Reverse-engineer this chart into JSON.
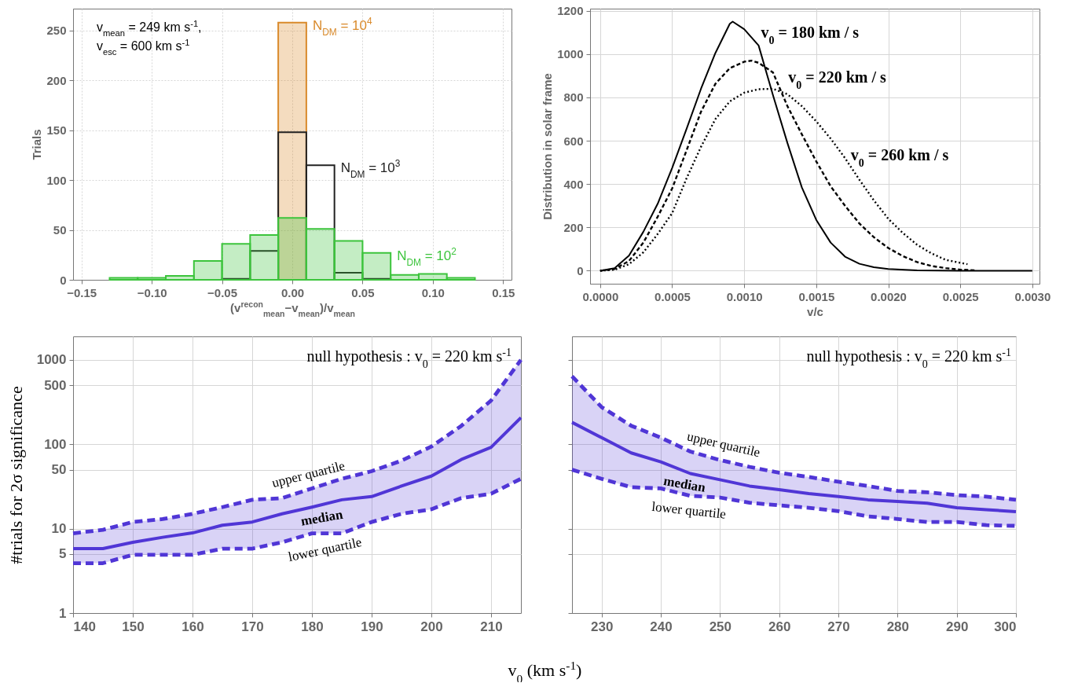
{
  "chart_data": [
    {
      "type": "histogram",
      "xlabel": "(v$^{recon}$$_{mean}$−v$_{mean}$)/v$_{mean}$",
      "ylabel": "Trials",
      "annotations": [
        "v$_{mean}$ = 249 km s$^{-1}$,",
        "v$_{esc}$ = 600 km s$^{-1}$"
      ],
      "bins": [
        -0.13,
        -0.11,
        -0.09,
        -0.07,
        -0.05,
        -0.03,
        -0.01,
        0.01,
        0.03,
        0.05,
        0.07,
        0.09,
        0.11,
        0.13
      ],
      "xlim": [
        -0.156,
        0.156
      ],
      "xticks": [
        {
          "value": -0.15,
          "label": "−0.15"
        },
        {
          "value": -0.1,
          "label": "−0.10"
        },
        {
          "value": -0.05,
          "label": "−0.05"
        },
        {
          "value": 0,
          "label": "0.00"
        },
        0.05,
        {
          "value": 0.1,
          "label": "0.10"
        },
        0.15
      ],
      "ylim": [
        0,
        272
      ],
      "yticks": [
        0,
        50,
        100,
        150,
        200,
        250
      ],
      "grid": true,
      "series": [
        {
          "name": "N$_{DM}$ = 10$^{4}$",
          "color": "#d98a2b",
          "values": [
            0,
            0,
            0,
            0,
            0,
            0,
            258,
            0,
            0,
            0,
            0,
            0,
            0
          ]
        },
        {
          "name": "N$_{DM}$ = 10$^{3}$",
          "color": "#222222",
          "values": [
            0,
            0,
            0,
            0,
            1,
            29,
            148,
            115,
            7,
            1,
            0,
            0,
            0
          ]
        },
        {
          "name": "N$_{DM}$ = 10$^{2}$",
          "color": "#3cc43c",
          "values": [
            2,
            2,
            4,
            19,
            36,
            45,
            62,
            51,
            39,
            27,
            5,
            6,
            2
          ]
        }
      ]
    },
    {
      "type": "line",
      "xlabel": "v/c",
      "ylabel": "Distribution in solar frame",
      "xlim": [
        -7e-05,
        0.00305
      ],
      "xticks": [
        {
          "value": 0,
          "label": "0.0000"
        },
        {
          "value": 0.0005,
          "label": "0.0005"
        },
        {
          "value": 0.001,
          "label": "0.0010"
        },
        {
          "value": 0.0015,
          "label": "0.0015"
        },
        {
          "value": 0.002,
          "label": "0.0020"
        },
        {
          "value": 0.0025,
          "label": "0.0025"
        },
        {
          "value": 0.003,
          "label": "0.0030"
        }
      ],
      "ylim": [
        -60,
        1210
      ],
      "yticks": [
        0,
        200,
        400,
        600,
        800,
        1000,
        1200
      ],
      "grid": true,
      "series": [
        {
          "name": "v$_{0}$ = 180 km / s",
          "color": "#000000",
          "line_style": "solid",
          "x": [
            0,
            0.0001,
            0.0002,
            0.0003,
            0.0004,
            0.0005,
            0.0006,
            0.0007,
            0.0008,
            0.0009,
            0.00092,
            0.001,
            0.0011,
            0.0012,
            0.0013,
            0.0014,
            0.0015,
            0.0016,
            0.0017,
            0.0018,
            0.0019,
            0.002,
            0.0022,
            0.0025,
            0.003
          ],
          "values": [
            0,
            12,
            70,
            180,
            310,
            475,
            655,
            840,
            1005,
            1140,
            1150,
            1115,
            1040,
            810,
            590,
            385,
            235,
            130,
            65,
            32,
            16,
            8,
            2,
            0,
            0
          ]
        },
        {
          "name": "v$_{0}$ = 220 km / s",
          "color": "#000000",
          "line_style": "dashed",
          "x": [
            0,
            0.0001,
            0.0002,
            0.0003,
            0.0004,
            0.0005,
            0.0006,
            0.0007,
            0.0008,
            0.0009,
            0.001,
            0.00105,
            0.0011,
            0.0012,
            0.0013,
            0.0014,
            0.0015,
            0.0016,
            0.0017,
            0.0018,
            0.0019,
            0.002,
            0.0021,
            0.0022,
            0.0023,
            0.0024,
            0.0025,
            0.0026
          ],
          "values": [
            0,
            8,
            45,
            130,
            250,
            380,
            556,
            734,
            863,
            935,
            965,
            970,
            960,
            915,
            760,
            630,
            505,
            390,
            300,
            218,
            155,
            105,
            68,
            40,
            22,
            12,
            5,
            2
          ]
        },
        {
          "name": "v$_{0}$ = 260 km / s",
          "color": "#000000",
          "line_style": "dotted",
          "x": [
            0,
            0.0001,
            0.0002,
            0.0003,
            0.0004,
            0.0005,
            0.0006,
            0.0007,
            0.0008,
            0.0009,
            0.001,
            0.0011,
            0.0012,
            0.0013,
            0.0014,
            0.0015,
            0.0016,
            0.0017,
            0.0018,
            0.0019,
            0.002,
            0.0021,
            0.0022,
            0.0023,
            0.0024,
            0.00255
          ],
          "values": [
            0,
            5,
            30,
            85,
            170,
            266,
            427,
            572,
            700,
            782,
            822,
            838,
            840,
            815,
            760,
            690,
            610,
            520,
            420,
            325,
            240,
            175,
            120,
            80,
            50,
            30
          ]
        }
      ]
    },
    {
      "type": "line",
      "xlabel": "v$_{0}$ (km s$^{-1}$)",
      "ylabel": "#trials for 2σ significance",
      "annotations": [
        "null hypothesis :  v$_{0}$ = 220 km s$^{-1}$"
      ],
      "log": true,
      "grid": true,
      "xlim": [
        140,
        215
      ],
      "xticks": [
        140,
        150,
        160,
        170,
        180,
        190,
        200,
        210
      ],
      "ylim": [
        1,
        1900
      ],
      "yticks": [
        1,
        5,
        10,
        50,
        100,
        500,
        1000
      ],
      "x": [
        140,
        145,
        150,
        155,
        160,
        165,
        170,
        175,
        180,
        185,
        190,
        195,
        200,
        205,
        210,
        215
      ],
      "series": [
        {
          "name": "upper quartile",
          "color": "#5036d6",
          "line_style": "dashed",
          "values": [
            8.8,
            9.7,
            12,
            13,
            15,
            18,
            22,
            23,
            30,
            39,
            48,
            64,
            94,
            165,
            330,
            1000
          ]
        },
        {
          "name": "median",
          "color": "#5036d6",
          "line_style": "solid",
          "values": [
            5.8,
            5.8,
            6.9,
            7.9,
            8.9,
            11,
            12,
            15,
            18,
            22,
            24,
            32,
            42,
            66,
            92,
            207
          ],
          "lower": [
            3.9,
            3.9,
            4.9,
            4.9,
            4.9,
            5.8,
            5.8,
            6.9,
            8.8,
            8.8,
            12,
            15,
            17,
            23,
            26,
            39
          ],
          "upper": [
            8.8,
            9.7,
            12,
            13,
            15,
            18,
            22,
            23,
            30,
            39,
            48,
            64,
            94,
            165,
            330,
            1000
          ]
        },
        {
          "name": "lower quartile",
          "color": "#5036d6",
          "line_style": "dashed",
          "values": [
            3.9,
            3.9,
            4.9,
            4.9,
            4.9,
            5.8,
            5.8,
            6.9,
            8.8,
            8.8,
            12,
            15,
            17,
            23,
            26,
            39
          ]
        }
      ]
    },
    {
      "type": "line",
      "annotations": [
        "null hypothesis :  v$_{0}$ = 220 km s$^{-1}$"
      ],
      "log": true,
      "grid": true,
      "tick_labels": "x",
      "xlim": [
        225,
        300
      ],
      "xticks": [
        230,
        240,
        250,
        260,
        270,
        280,
        290,
        300
      ],
      "ylim": [
        1,
        1900
      ],
      "yticks": [
        1,
        5,
        10,
        50,
        100,
        500,
        1000
      ],
      "x": [
        225,
        230,
        235,
        240,
        245,
        250,
        255,
        260,
        265,
        270,
        275,
        280,
        285,
        290,
        295,
        300
      ],
      "series": [
        {
          "name": "upper quartile",
          "color": "#5036d6",
          "line_style": "dashed",
          "values": [
            640,
            276,
            166,
            120,
            82,
            65,
            54,
            46,
            41,
            36,
            32,
            28,
            27,
            25,
            24,
            22
          ]
        },
        {
          "name": "median",
          "color": "#5036d6",
          "line_style": "solid",
          "values": [
            182,
            120,
            79,
            62,
            45,
            38,
            32,
            29,
            26,
            24,
            22,
            21,
            20,
            17.7,
            16.8,
            15.9
          ],
          "lower": [
            50,
            39,
            31,
            30,
            24.5,
            23.4,
            20.3,
            18.9,
            17.7,
            16.1,
            14,
            13,
            12,
            12,
            11,
            10.8
          ],
          "upper": [
            640,
            276,
            166,
            120,
            82,
            65,
            54,
            46,
            41,
            36,
            32,
            28,
            27,
            25,
            24,
            22
          ]
        },
        {
          "name": "lower quartile",
          "color": "#5036d6",
          "line_style": "dashed",
          "values": [
            50,
            39,
            31,
            30,
            24.5,
            23.4,
            20.3,
            18.9,
            17.7,
            16.1,
            14,
            13,
            12,
            12,
            11,
            10.8
          ]
        }
      ]
    }
  ]
}
